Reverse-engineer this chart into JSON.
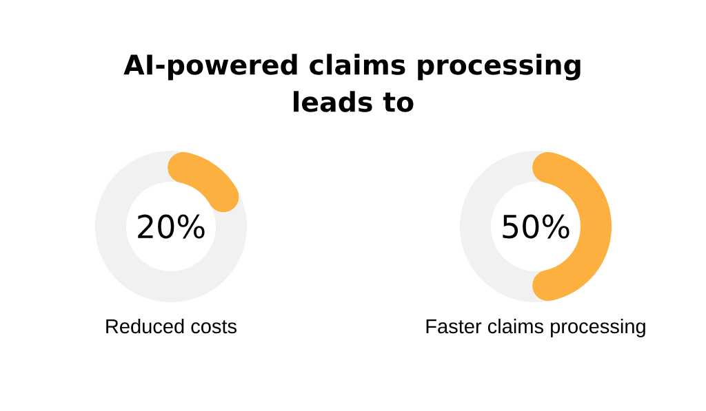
{
  "chart_data": [
    {
      "type": "donut",
      "title": "AI-powered claims processing leads to",
      "xlabel": "Reduced costs",
      "categories": [
        null,
        null
      ],
      "values": [
        20,
        80
      ],
      "colors": [
        "#fbb040",
        "#f1f1f1"
      ],
      "value_labels": [
        "20%",
        null
      ]
    },
    {
      "type": "donut",
      "xlabel": "Faster claims processing",
      "categories": [
        null,
        null
      ],
      "values": [
        50,
        50
      ],
      "colors": [
        "#fbb040",
        "#f1f1f1"
      ],
      "value_labels": [
        "50%",
        null
      ]
    }
  ]
}
